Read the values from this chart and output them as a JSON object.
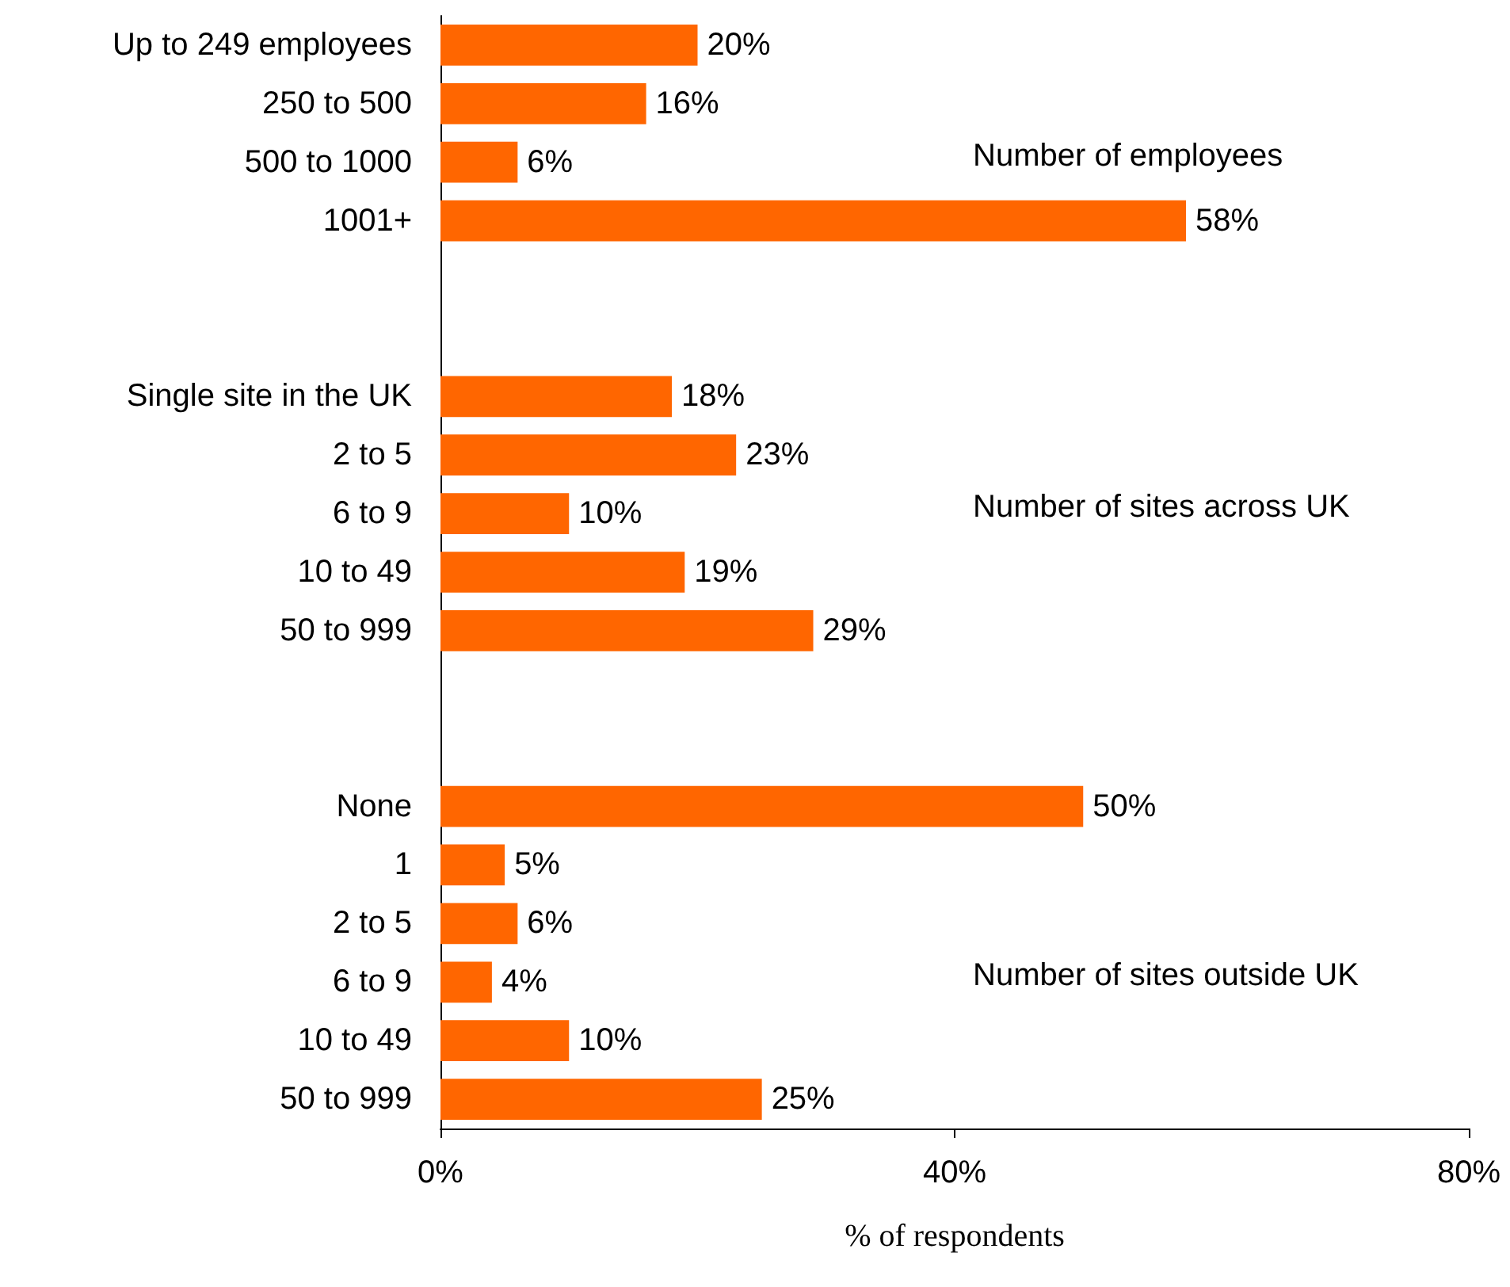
{
  "chart_data": {
    "type": "bar",
    "orientation": "horizontal",
    "xlabel": "% of respondents",
    "categories": [
      "Up to 249 employees",
      "250 to 500",
      "500 to 1000",
      "1001+",
      null,
      null,
      "Single site in the UK",
      "2 to 5",
      "6 to 9",
      "10 to 49",
      "50 to 999",
      null,
      null,
      "None",
      "1",
      "2 to 5",
      "6 to 9",
      "10 to 49",
      "50 to 999"
    ],
    "values": [
      20,
      16,
      6,
      58,
      null,
      null,
      18,
      23,
      10,
      19,
      29,
      null,
      null,
      50,
      5,
      6,
      4,
      10,
      25
    ],
    "value_labels": [
      "20%",
      "16%",
      "6%",
      "58%",
      null,
      null,
      "18%",
      "23%",
      "10%",
      "19%",
      "29%",
      null,
      null,
      "50%",
      "5%",
      "6%",
      "4%",
      "10%",
      "25%"
    ],
    "color": "#ff6600",
    "xlim": [
      0,
      80
    ],
    "xticks": [
      {
        "value": 0,
        "label": "0%"
      },
      {
        "value": 40,
        "label": "40%"
      },
      {
        "value": 80,
        "label": "80%"
      }
    ],
    "annotations": [
      "Number of employees",
      "Number of sites across UK",
      "Number of sites outside UK"
    ],
    "grid": false
  }
}
